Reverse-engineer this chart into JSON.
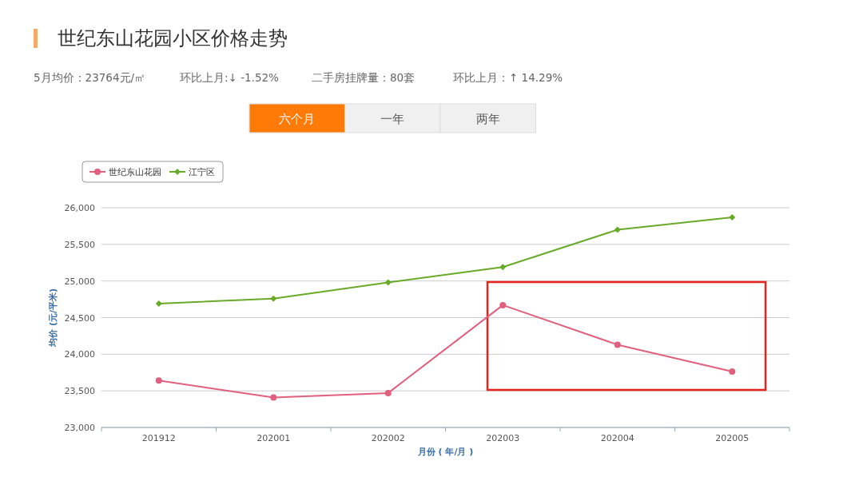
{
  "chart_data": {
    "type": "line",
    "title": "世纪东山花园小区价格走势",
    "annotations": [
      "5月均价：23764元/㎡",
      "环比上月:↓ -1.52%",
      "二手房挂牌量：80套",
      "环比上月：↑ 14.29%",
      "六个月",
      "一年",
      "两年"
    ],
    "xlabel": "月份 ( 年/月 )",
    "ylabel": "均价 (元/平米)",
    "categories": [
      "201912",
      "202001",
      "202002",
      "202003",
      "202004",
      "202005"
    ],
    "series": [
      {
        "name": "世纪东山花园",
        "color": "#e0607e",
        "marker": "circle",
        "values": [
          23640,
          23410,
          23470,
          24670,
          24130,
          23764
        ]
      },
      {
        "name": "江宁区",
        "color": "#6aaa2a",
        "marker": "diamond",
        "values": [
          24690,
          24760,
          24980,
          25190,
          25700,
          25870
        ]
      }
    ],
    "ylim": [
      23000,
      26000
    ],
    "yticks": [
      {
        "value": 23000,
        "label": "23,000"
      },
      {
        "value": 23500,
        "label": "23,500"
      },
      {
        "value": 24000,
        "label": "24,000"
      },
      {
        "value": 24500,
        "label": "24,500"
      },
      {
        "value": 25000,
        "label": "25,000"
      },
      {
        "value": 25500,
        "label": "25,500"
      },
      {
        "value": 26000,
        "label": "26,000"
      }
    ],
    "grid": "y",
    "legend": "top left"
  }
}
